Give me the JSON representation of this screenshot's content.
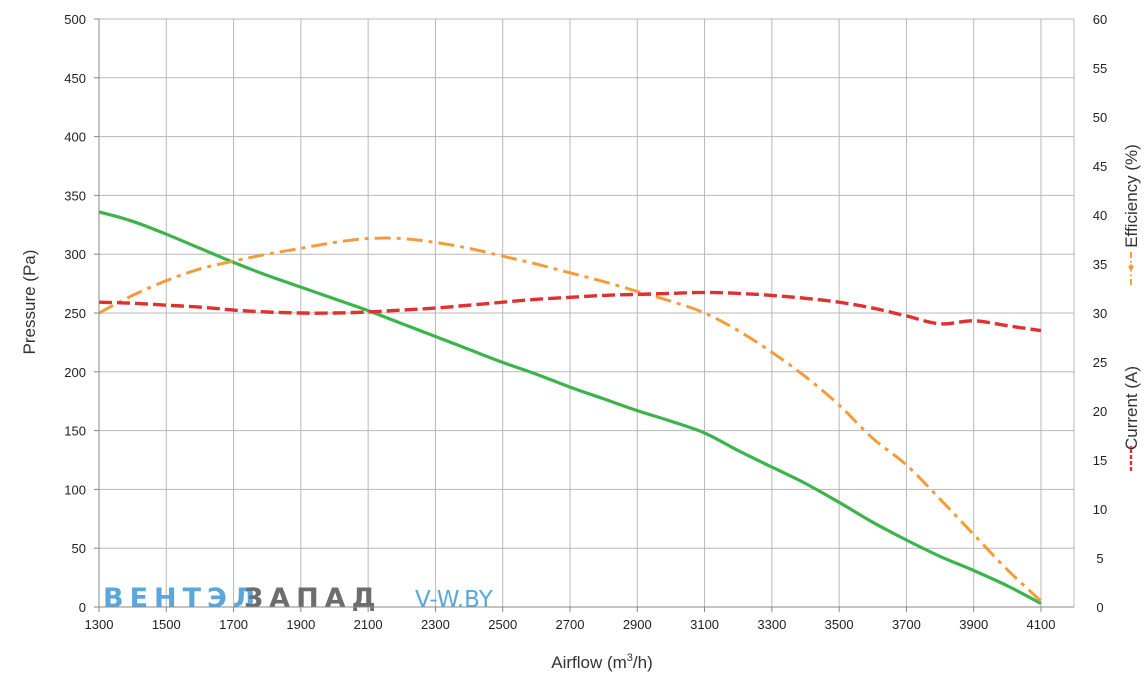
{
  "chart_data": {
    "type": "line",
    "xlabel_main": "Airflow (m",
    "xlabel_sup": "3",
    "xlabel_end": "/h)",
    "ylabel": "Pressure (Pa)",
    "y2label_efficiency": "Efficiency (%)",
    "y2label_current": "Current (A)",
    "xlim": [
      1300,
      4200
    ],
    "ylim": [
      0,
      500
    ],
    "y2lim": [
      0,
      60
    ],
    "x_ticks": [
      1300,
      1500,
      1700,
      1900,
      2100,
      2300,
      2500,
      2700,
      2900,
      3100,
      3300,
      3500,
      3700,
      3900,
      4100
    ],
    "y_ticks": [
      0,
      50,
      100,
      150,
      200,
      250,
      300,
      350,
      400,
      450,
      500
    ],
    "y2_ticks": [
      0,
      5,
      10,
      15,
      20,
      25,
      30,
      35,
      40,
      45,
      50,
      55,
      60
    ],
    "grid": true,
    "series": [
      {
        "key": "pressure",
        "axis": "left",
        "color": "#3cb44b",
        "style": "solid",
        "points": [
          [
            1300,
            336
          ],
          [
            1400,
            328
          ],
          [
            1500,
            317
          ],
          [
            1600,
            305
          ],
          [
            1700,
            293
          ],
          [
            1800,
            282
          ],
          [
            1900,
            272
          ],
          [
            2000,
            262
          ],
          [
            2100,
            252
          ],
          [
            2200,
            241
          ],
          [
            2300,
            230
          ],
          [
            2400,
            219
          ],
          [
            2500,
            208
          ],
          [
            2600,
            198
          ],
          [
            2700,
            187
          ],
          [
            2800,
            177
          ],
          [
            2900,
            167
          ],
          [
            3000,
            158
          ],
          [
            3100,
            148
          ],
          [
            3200,
            133
          ],
          [
            3300,
            119
          ],
          [
            3400,
            105
          ],
          [
            3500,
            89
          ],
          [
            3600,
            72
          ],
          [
            3700,
            57
          ],
          [
            3800,
            43
          ],
          [
            3900,
            31
          ],
          [
            4000,
            18
          ],
          [
            4100,
            3
          ]
        ]
      },
      {
        "key": "efficiency",
        "axis": "right",
        "color": "#f39c3c",
        "style": "dashdot",
        "points": [
          [
            1300,
            30
          ],
          [
            1400,
            31.8
          ],
          [
            1500,
            33.3
          ],
          [
            1600,
            34.5
          ],
          [
            1700,
            35.3
          ],
          [
            1800,
            36
          ],
          [
            1900,
            36.6
          ],
          [
            2000,
            37.2
          ],
          [
            2100,
            37.6
          ],
          [
            2200,
            37.6
          ],
          [
            2300,
            37.2
          ],
          [
            2400,
            36.6
          ],
          [
            2500,
            35.8
          ],
          [
            2600,
            35
          ],
          [
            2700,
            34.1
          ],
          [
            2800,
            33.2
          ],
          [
            2900,
            32.2
          ],
          [
            3000,
            31.2
          ],
          [
            3100,
            30
          ],
          [
            3200,
            28.2
          ],
          [
            3300,
            26
          ],
          [
            3400,
            23.5
          ],
          [
            3500,
            20.6
          ],
          [
            3600,
            17.2
          ],
          [
            3700,
            14.5
          ],
          [
            3800,
            11
          ],
          [
            3900,
            7.4
          ],
          [
            4000,
            3.8
          ],
          [
            4100,
            0.6
          ]
        ]
      },
      {
        "key": "current",
        "axis": "right",
        "color": "#e03131",
        "style": "dashed",
        "points": [
          [
            1300,
            31.1
          ],
          [
            1400,
            31
          ],
          [
            1500,
            30.8
          ],
          [
            1600,
            30.6
          ],
          [
            1700,
            30.3
          ],
          [
            1800,
            30.1
          ],
          [
            1900,
            30
          ],
          [
            2000,
            30
          ],
          [
            2100,
            30.1
          ],
          [
            2200,
            30.3
          ],
          [
            2300,
            30.5
          ],
          [
            2400,
            30.8
          ],
          [
            2500,
            31.1
          ],
          [
            2600,
            31.4
          ],
          [
            2700,
            31.6
          ],
          [
            2800,
            31.8
          ],
          [
            2900,
            31.9
          ],
          [
            3000,
            32
          ],
          [
            3100,
            32.1
          ],
          [
            3200,
            32
          ],
          [
            3300,
            31.8
          ],
          [
            3400,
            31.5
          ],
          [
            3500,
            31.1
          ],
          [
            3600,
            30.5
          ],
          [
            3700,
            29.7
          ],
          [
            3800,
            28.9
          ],
          [
            3900,
            29.2
          ],
          [
            4000,
            28.7
          ],
          [
            4100,
            28.2
          ]
        ]
      }
    ]
  },
  "watermark": {
    "part1": "ВЕНТЭЛ",
    "part2": "ЗАПАД",
    "part3": "V-W.BY",
    "color1": "#5aa7dc",
    "color2": "#6d6d6d"
  }
}
